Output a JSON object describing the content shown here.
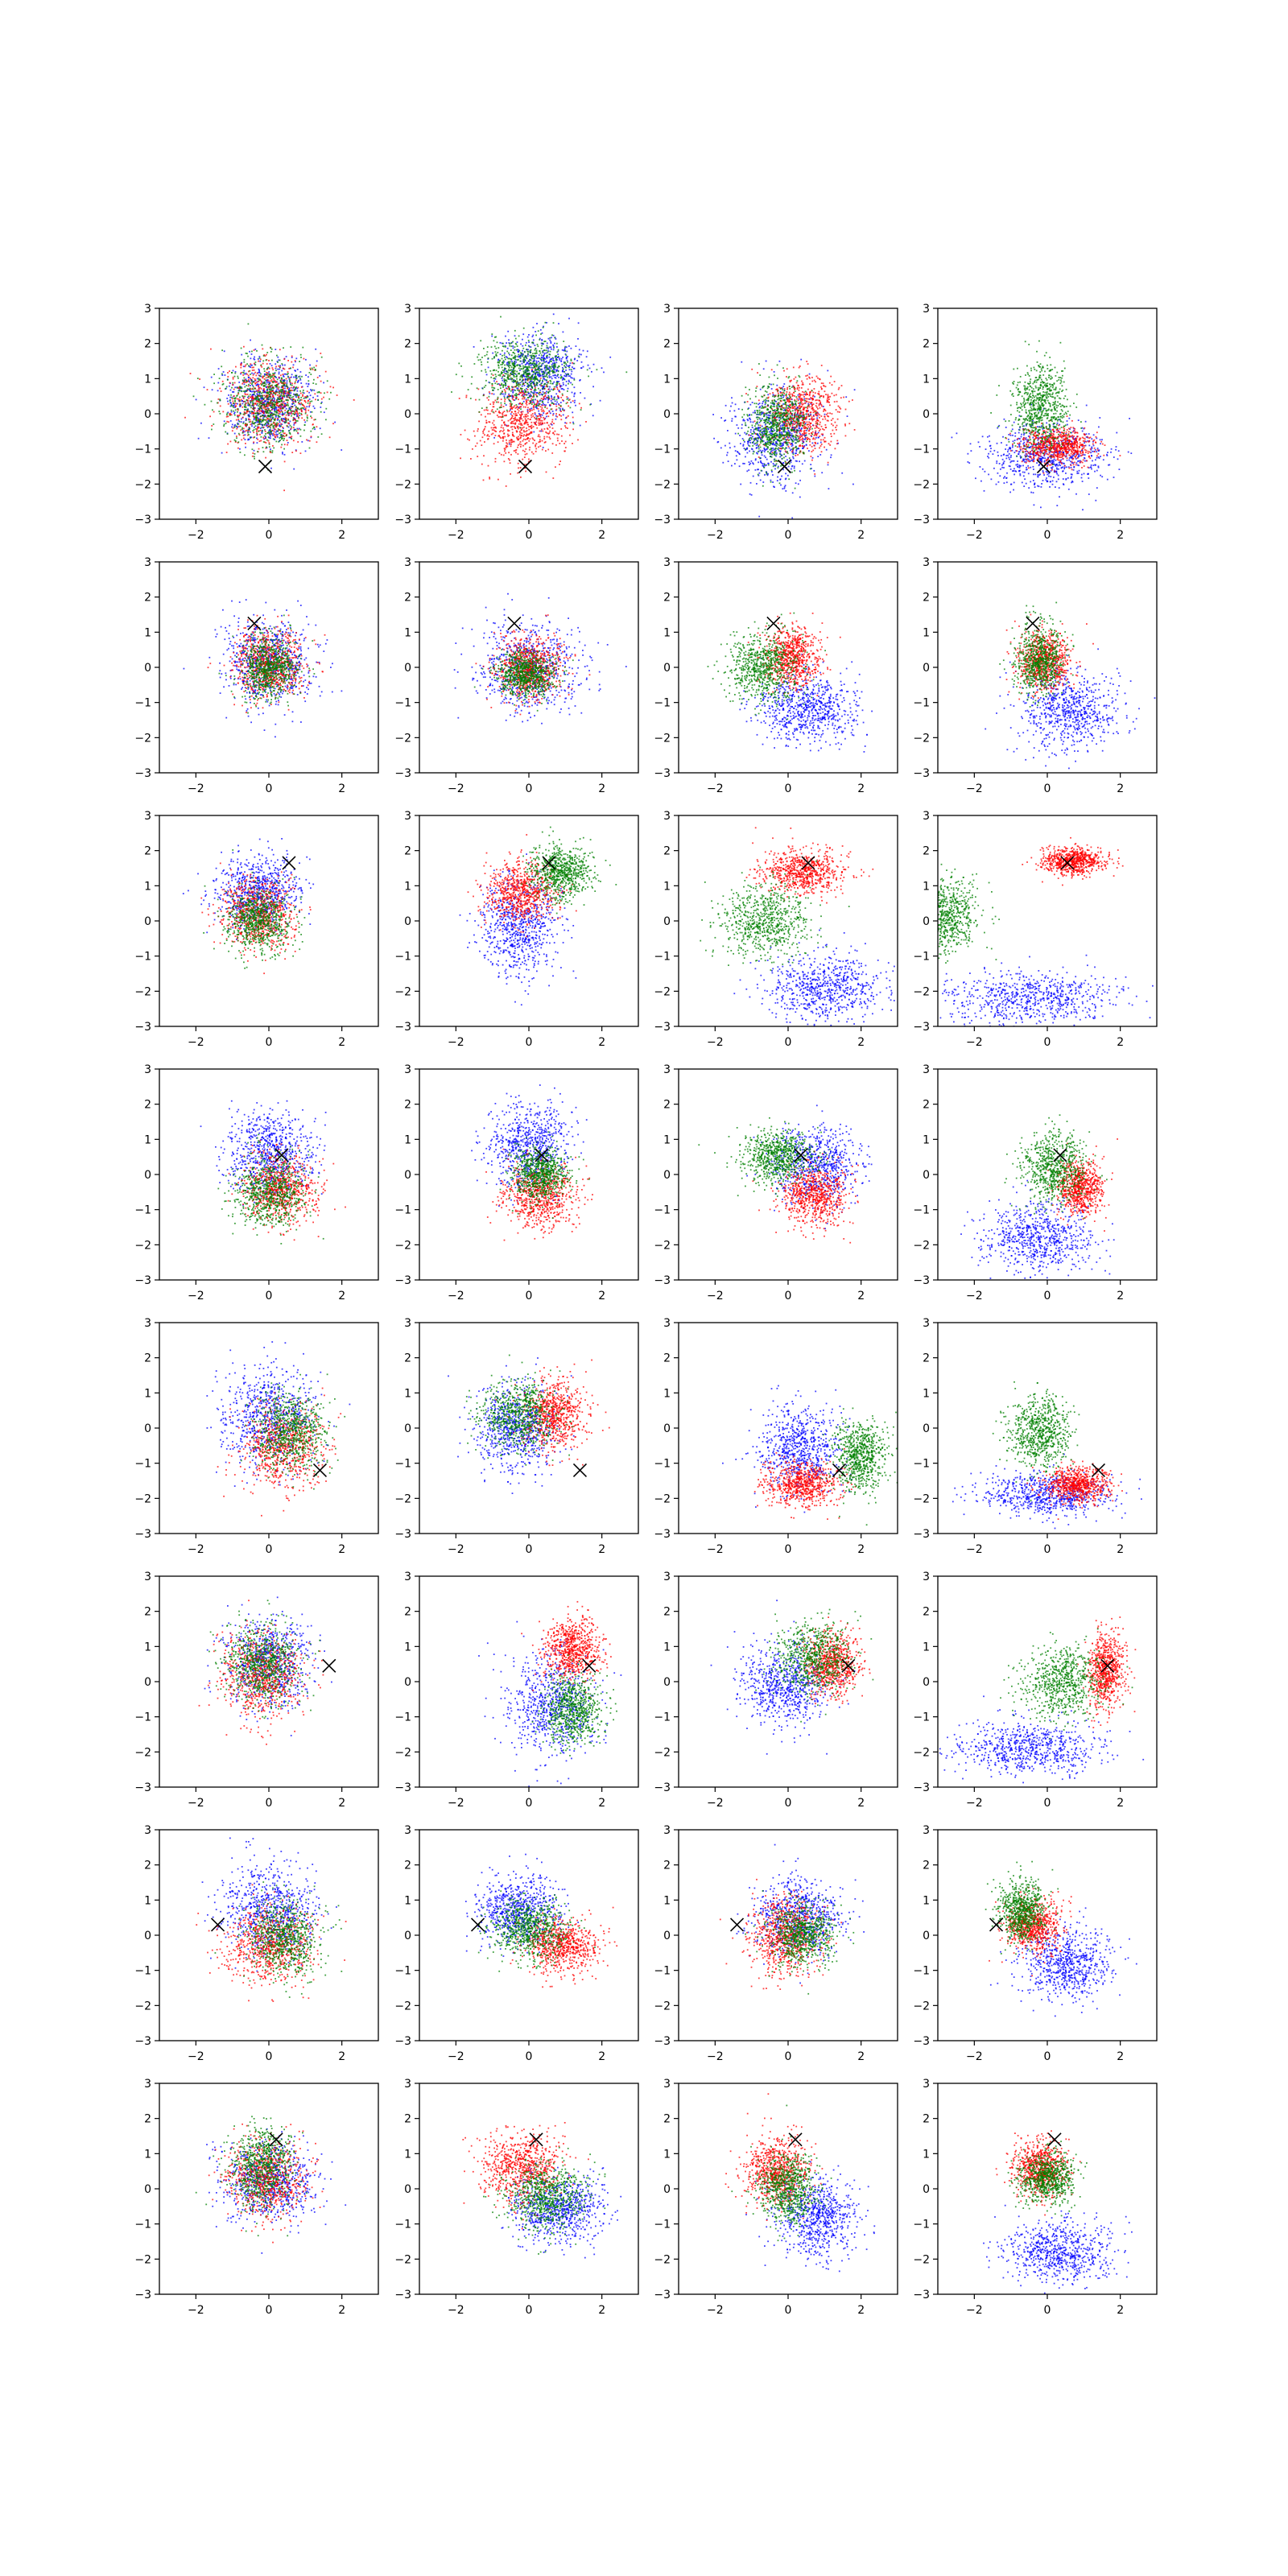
{
  "figure": {
    "background": "#ffffff",
    "rows": 8,
    "cols": 4
  },
  "colors": {
    "blue": "#0000ff",
    "red": "#ff0000",
    "green": "#008000",
    "marker": "#000000",
    "axes": "#000000"
  },
  "chart_data": [
    {
      "type": "scatter",
      "subplot_grid": "8x4",
      "xlim": [
        -3,
        3
      ],
      "ylim": [
        -3,
        3
      ],
      "xticks": [
        "−2",
        "0",
        "2"
      ],
      "yticks": [
        "3",
        "2",
        "1",
        "0",
        "−1",
        "−2",
        "−3"
      ],
      "xtick_values": [
        -2,
        0,
        2
      ],
      "ytick_values": [
        3,
        2,
        1,
        0,
        -1,
        -2,
        -3
      ],
      "marker_symbol": "x",
      "markers": [
        [
          -0.1,
          -1.5
        ],
        [
          -0.4,
          1.25
        ],
        [
          0.55,
          1.65
        ],
        [
          0.35,
          0.55
        ],
        [
          1.4,
          -1.2
        ],
        [
          1.65,
          0.45
        ],
        [
          -1.4,
          0.3
        ],
        [
          0.2,
          1.4
        ]
      ],
      "panels": [
        [
          {
            "blue": [
              0.0,
              0.3,
              1.0,
              1.0
            ],
            "red": [
              0.0,
              0.3,
              1.0,
              1.0
            ],
            "green": [
              0.0,
              0.3,
              1.0,
              1.0
            ]
          },
          {
            "blue": [
              0.3,
              1.1,
              1.0,
              1.0
            ],
            "red": [
              -0.2,
              -0.2,
              1.0,
              1.0
            ],
            "green": [
              -0.1,
              1.2,
              1.0,
              0.8
            ]
          },
          {
            "blue": [
              -0.3,
              -0.6,
              1.0,
              1.1
            ],
            "red": [
              0.4,
              0.0,
              0.8,
              0.9
            ],
            "green": [
              -0.3,
              -0.3,
              0.6,
              0.9
            ]
          },
          {
            "blue": [
              0.0,
              -1.2,
              1.4,
              0.8
            ],
            "red": [
              0.3,
              -0.9,
              0.8,
              0.4
            ],
            "green": [
              -0.2,
              0.2,
              0.6,
              1.0
            ]
          }
        ],
        [
          {
            "blue": [
              0.0,
              0.2,
              1.0,
              1.0
            ],
            "red": [
              0.0,
              0.1,
              0.8,
              0.8
            ],
            "green": [
              0.0,
              0.0,
              0.6,
              0.7
            ]
          },
          {
            "blue": [
              0.0,
              0.0,
              1.1,
              1.0
            ],
            "red": [
              0.0,
              0.0,
              0.7,
              0.7
            ],
            "green": [
              -0.1,
              -0.2,
              0.6,
              0.5
            ]
          },
          {
            "blue": [
              0.5,
              -1.2,
              1.1,
              0.8
            ],
            "red": [
              0.1,
              0.3,
              0.6,
              0.7
            ],
            "green": [
              -0.7,
              0.0,
              0.8,
              0.8
            ]
          },
          {
            "blue": [
              0.6,
              -1.2,
              1.1,
              0.9
            ],
            "red": [
              -0.1,
              0.2,
              0.6,
              0.7
            ],
            "green": [
              -0.2,
              0.2,
              0.5,
              0.8
            ]
          }
        ],
        [
          {
            "blue": [
              -0.3,
              0.8,
              0.9,
              0.8
            ],
            "red": [
              -0.3,
              0.2,
              0.8,
              0.8
            ],
            "green": [
              -0.3,
              0.0,
              0.7,
              0.7
            ]
          },
          {
            "blue": [
              -0.3,
              -0.2,
              0.9,
              1.1
            ],
            "red": [
              -0.2,
              0.8,
              0.8,
              0.7
            ],
            "green": [
              0.9,
              1.4,
              0.7,
              0.6
            ]
          },
          {
            "blue": [
              1.0,
              -1.9,
              1.3,
              0.8
            ],
            "red": [
              0.4,
              1.4,
              0.9,
              0.5
            ],
            "green": [
              -0.6,
              0.0,
              1.0,
              0.8
            ]
          },
          {
            "blue": [
              -0.5,
              -2.2,
              1.8,
              0.6
            ],
            "red": [
              0.7,
              1.7,
              0.7,
              0.3
            ],
            "green": [
              -2.8,
              0.2,
              0.7,
              0.8
            ]
          }
        ],
        [
          {
            "blue": [
              0.0,
              0.6,
              1.0,
              0.9
            ],
            "red": [
              0.3,
              -0.4,
              0.8,
              0.8
            ],
            "green": [
              0.0,
              -0.5,
              0.8,
              0.8
            ]
          },
          {
            "blue": [
              0.0,
              0.8,
              0.9,
              1.0
            ],
            "red": [
              0.3,
              -0.6,
              0.8,
              0.7
            ],
            "green": [
              0.3,
              0.0,
              0.6,
              0.6
            ]
          },
          {
            "blue": [
              0.8,
              0.3,
              1.0,
              0.9
            ],
            "red": [
              0.7,
              -0.6,
              0.7,
              0.7
            ],
            "green": [
              -0.3,
              0.5,
              0.8,
              0.6
            ]
          },
          {
            "blue": [
              -0.2,
              -1.8,
              1.2,
              0.8
            ],
            "red": [
              0.9,
              -0.4,
              0.5,
              0.6
            ],
            "green": [
              0.2,
              0.2,
              0.7,
              0.8
            ]
          }
        ],
        [
          {
            "blue": [
              0.0,
              0.3,
              1.1,
              1.1
            ],
            "red": [
              0.4,
              -0.5,
              0.9,
              0.9
            ],
            "green": [
              0.6,
              -0.1,
              0.8,
              0.9
            ]
          },
          {
            "blue": [
              -0.4,
              0.0,
              0.9,
              1.0
            ],
            "red": [
              0.7,
              0.4,
              0.7,
              0.8
            ],
            "green": [
              -0.3,
              0.4,
              0.8,
              0.8
            ]
          },
          {
            "blue": [
              0.3,
              -0.6,
              0.9,
              0.9
            ],
            "red": [
              0.4,
              -1.6,
              0.8,
              0.5
            ],
            "green": [
              2.0,
              -0.8,
              0.6,
              0.8
            ]
          },
          {
            "blue": [
              0.0,
              -1.9,
              1.4,
              0.5
            ],
            "red": [
              0.8,
              -1.6,
              0.7,
              0.4
            ],
            "green": [
              -0.2,
              -0.1,
              0.7,
              0.8
            ]
          }
        ],
        [
          {
            "blue": [
              0.0,
              0.6,
              1.0,
              1.0
            ],
            "red": [
              -0.2,
              0.2,
              0.9,
              1.0
            ],
            "green": [
              -0.2,
              0.5,
              0.8,
              0.9
            ]
          },
          {
            "blue": [
              0.6,
              -0.7,
              1.0,
              1.2
            ],
            "red": [
              1.2,
              0.9,
              0.6,
              0.7
            ],
            "green": [
              1.2,
              -0.8,
              0.6,
              0.8
            ]
          },
          {
            "blue": [
              -0.1,
              -0.1,
              1.0,
              0.9
            ],
            "red": [
              1.2,
              0.5,
              0.6,
              0.7
            ],
            "green": [
              0.7,
              0.7,
              0.8,
              0.8
            ]
          },
          {
            "blue": [
              -0.5,
              -1.9,
              1.6,
              0.6
            ],
            "red": [
              1.6,
              0.3,
              0.4,
              0.8
            ],
            "green": [
              0.4,
              0.0,
              0.9,
              0.8
            ]
          }
        ],
        [
          {
            "blue": [
              0.0,
              0.7,
              1.0,
              1.0
            ],
            "red": [
              0.0,
              -0.3,
              1.0,
              0.9
            ],
            "green": [
              0.4,
              -0.1,
              0.8,
              0.9
            ]
          },
          {
            "blue": [
              -0.3,
              0.7,
              0.9,
              0.8
            ],
            "red": [
              0.9,
              -0.3,
              0.8,
              0.6
            ],
            "green": [
              0.0,
              0.2,
              0.8,
              0.7
            ]
          },
          {
            "blue": [
              0.3,
              0.5,
              1.0,
              0.9
            ],
            "red": [
              -0.1,
              0.0,
              0.8,
              0.9
            ],
            "green": [
              0.4,
              0.0,
              0.7,
              0.7
            ]
          },
          {
            "blue": [
              0.5,
              -0.8,
              1.0,
              0.8
            ],
            "red": [
              -0.4,
              0.3,
              0.6,
              0.6
            ],
            "green": [
              -0.7,
              0.7,
              0.5,
              0.7
            ]
          }
        ],
        [
          {
            "blue": [
              0.0,
              0.2,
              1.0,
              0.9
            ],
            "red": [
              -0.1,
              0.3,
              0.9,
              0.9
            ],
            "green": [
              -0.2,
              0.6,
              0.7,
              0.9
            ]
          },
          {
            "blue": [
              0.8,
              -0.6,
              1.0,
              0.8
            ],
            "red": [
              -0.2,
              0.6,
              0.9,
              0.8
            ],
            "green": [
              0.5,
              -0.2,
              0.9,
              0.8
            ]
          },
          {
            "blue": [
              0.8,
              -0.8,
              0.9,
              0.9
            ],
            "red": [
              -0.3,
              0.5,
              0.7,
              0.8
            ],
            "green": [
              0.0,
              0.0,
              0.6,
              0.8
            ]
          },
          {
            "blue": [
              0.3,
              -1.8,
              1.2,
              0.7
            ],
            "red": [
              -0.2,
              0.6,
              0.6,
              0.6
            ],
            "green": [
              0.0,
              0.3,
              0.6,
              0.6
            ]
          }
        ]
      ]
    }
  ]
}
